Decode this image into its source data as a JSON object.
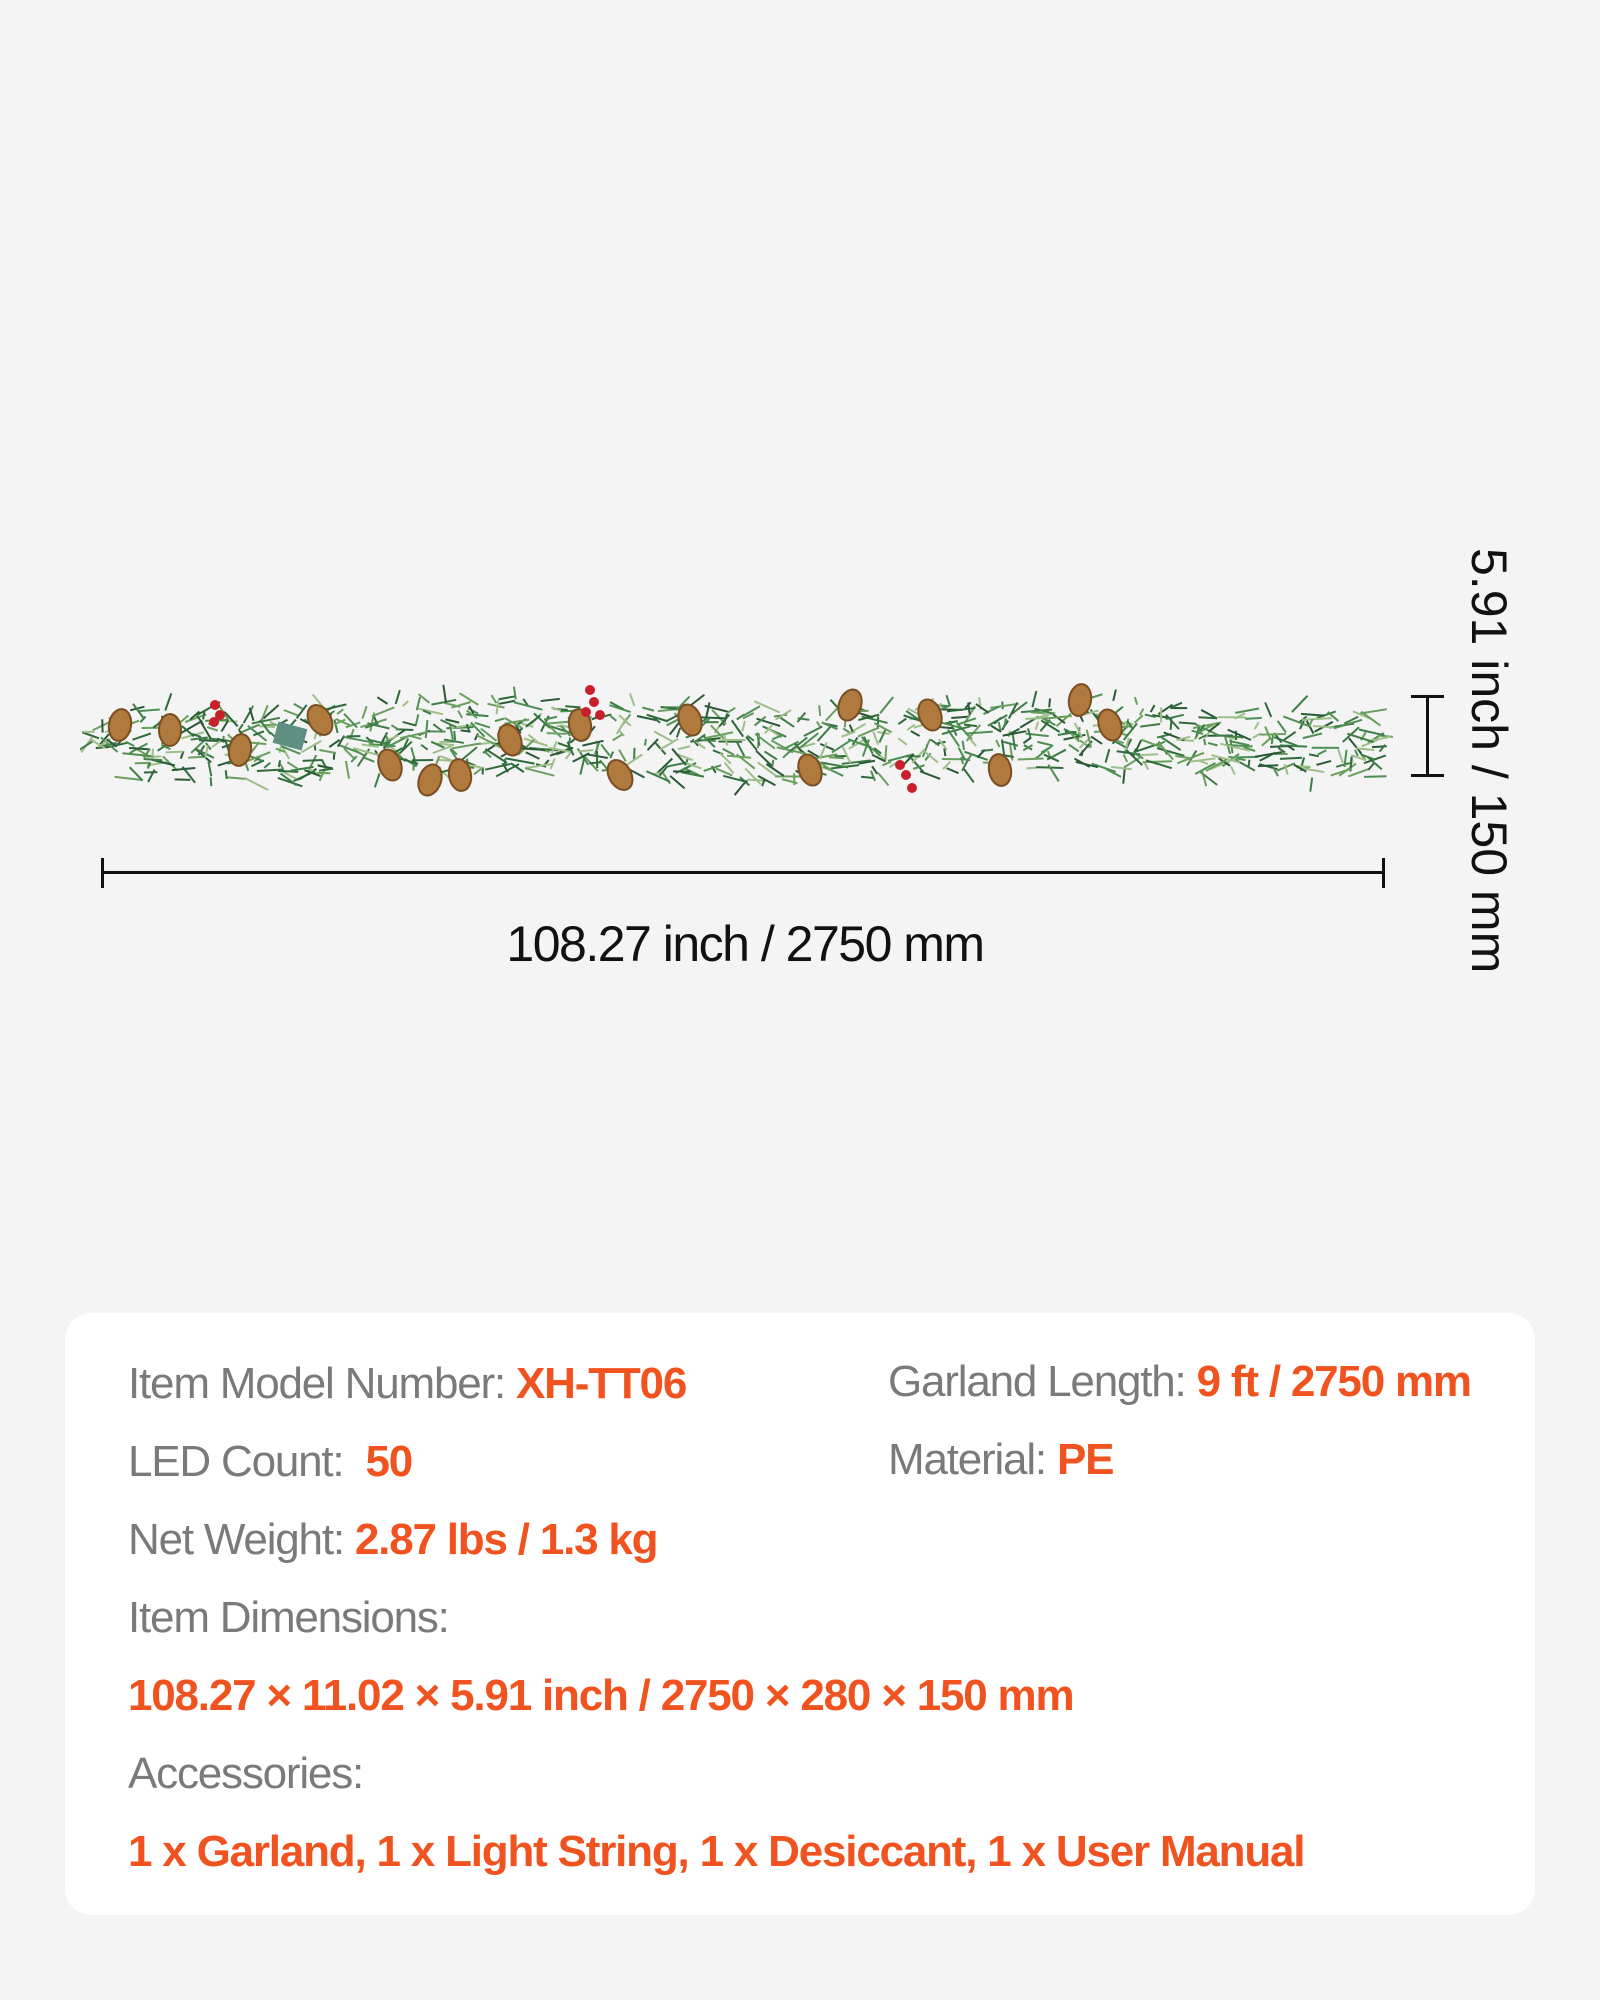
{
  "dimensions": {
    "length_label": "108.27 inch /  2750 mm",
    "height_label": "5.91 inch /  150 mm"
  },
  "specs": {
    "model": {
      "label": "Item Model Number:",
      "value": "XH-TT06"
    },
    "length": {
      "label": "Garland Length:",
      "value": "9 ft / 2750 mm"
    },
    "led": {
      "label": "LED Count:",
      "value": "50"
    },
    "material": {
      "label": "Material:",
      "value": "PE"
    },
    "weight": {
      "label": "Net Weight:",
      "value": "2.87 lbs / 1.3 kg"
    },
    "item_dimensions": {
      "label": "Item Dimensions:",
      "value": "108.27 × 11.02 × 5.91 inch / 2750 × 280 × 150 mm"
    },
    "accessories": {
      "label": "Accessories:",
      "value": "1 x Garland, 1 x Light String, 1 x Desiccant, 1 x User Manual"
    }
  },
  "colors": {
    "accent": "#f0531f",
    "label": "#7a7a7a",
    "background": "#f4f4f4",
    "card": "#ffffff"
  }
}
